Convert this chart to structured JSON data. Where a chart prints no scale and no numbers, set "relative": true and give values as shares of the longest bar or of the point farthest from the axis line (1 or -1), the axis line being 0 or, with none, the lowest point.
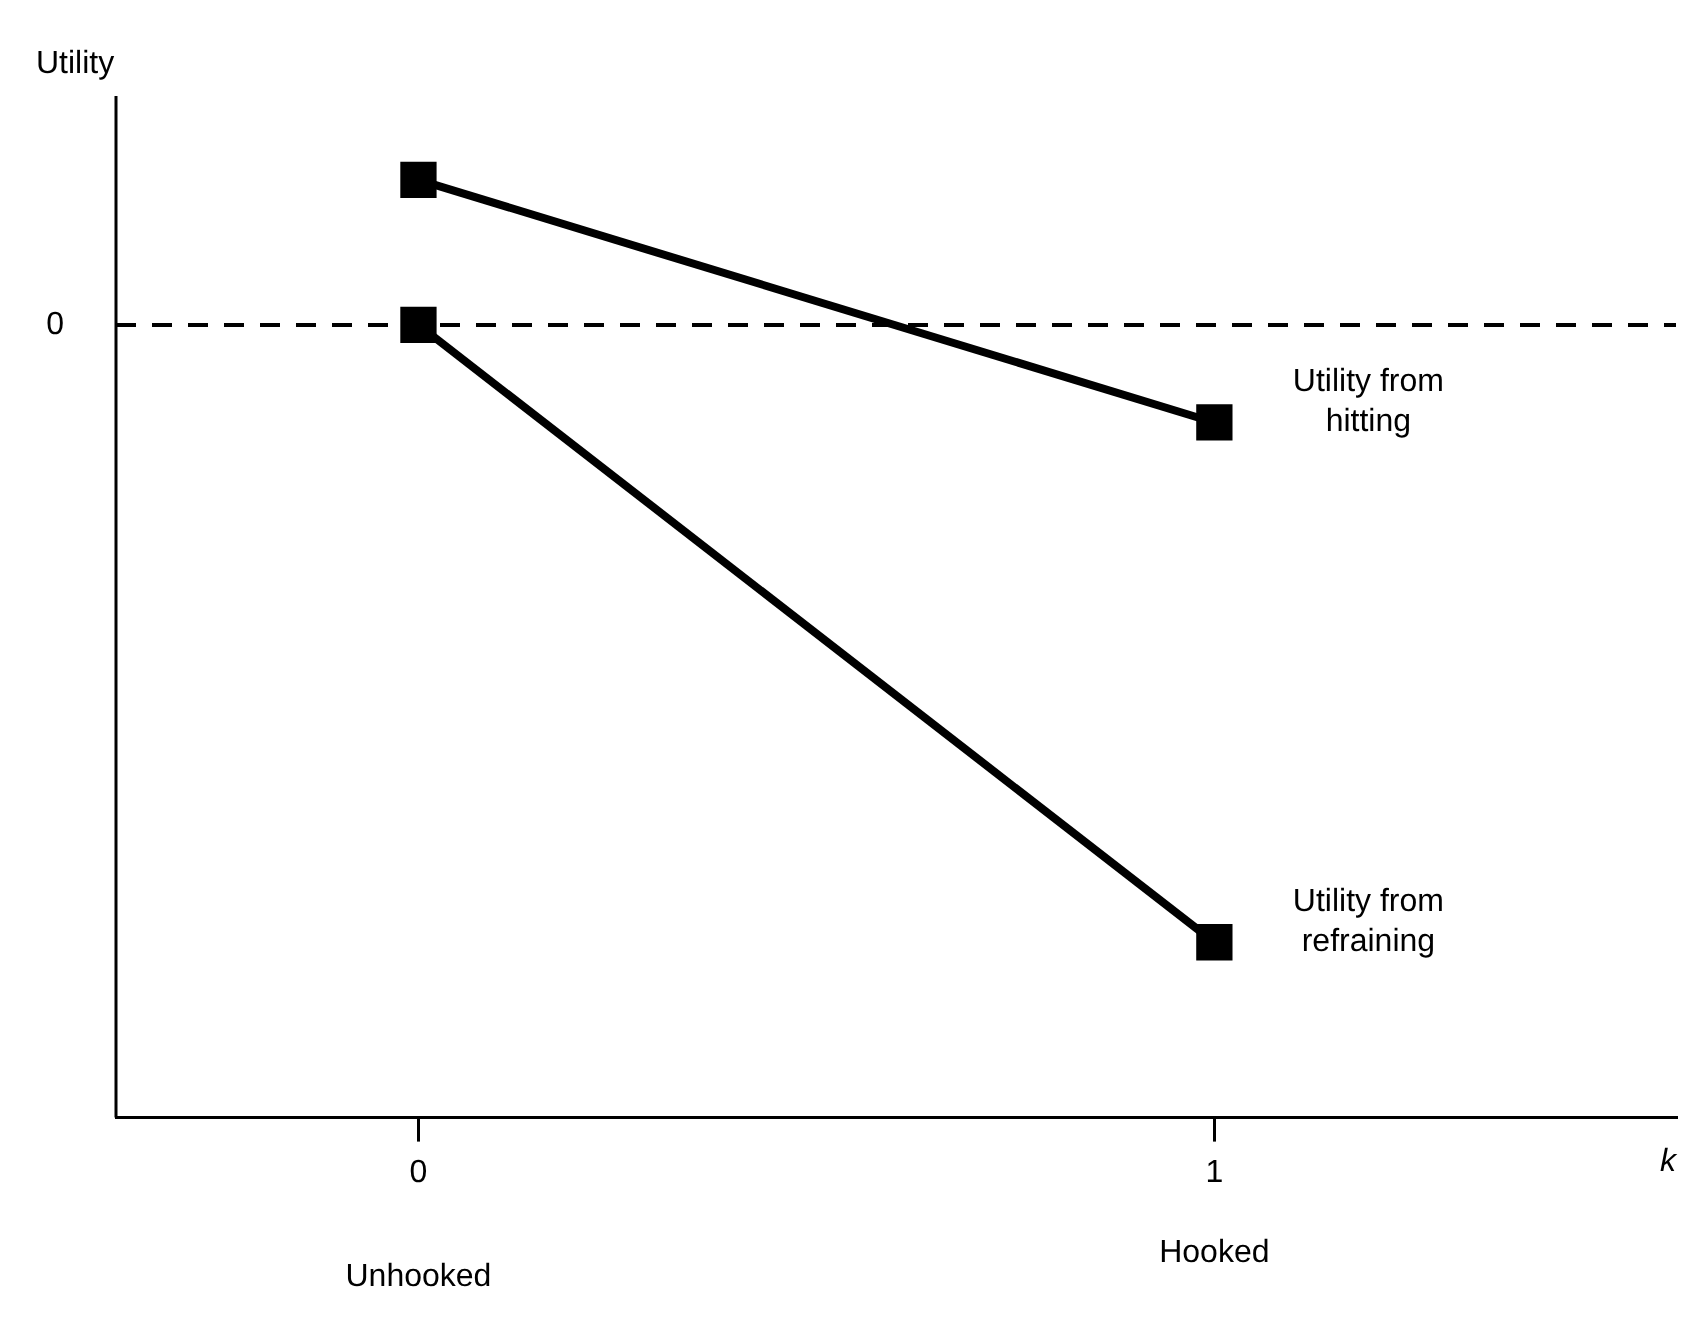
{
  "chart_data": {
    "type": "line",
    "relative": true,
    "xlabel": "k",
    "ylabel": "Utility",
    "x": [
      0,
      1
    ],
    "xlim": [
      -0.38,
      1.58
    ],
    "xticks": [
      0,
      1
    ],
    "series": [
      {
        "name": "Utility from hitting",
        "color": "#000000",
        "values": [
          0.235,
          -0.158
        ]
      },
      {
        "name": "Utility from refraining",
        "color": "#000000",
        "values": [
          0,
          -1
        ]
      }
    ],
    "ref_lines": [
      {
        "axis": "y",
        "value": 0,
        "label": "0",
        "color": "#000000",
        "line_style": "dashed"
      }
    ],
    "annotations": [
      "Unhooked",
      "Hooked"
    ],
    "marker": "square",
    "line_style": "solid",
    "grid": false,
    "legend": false
  }
}
